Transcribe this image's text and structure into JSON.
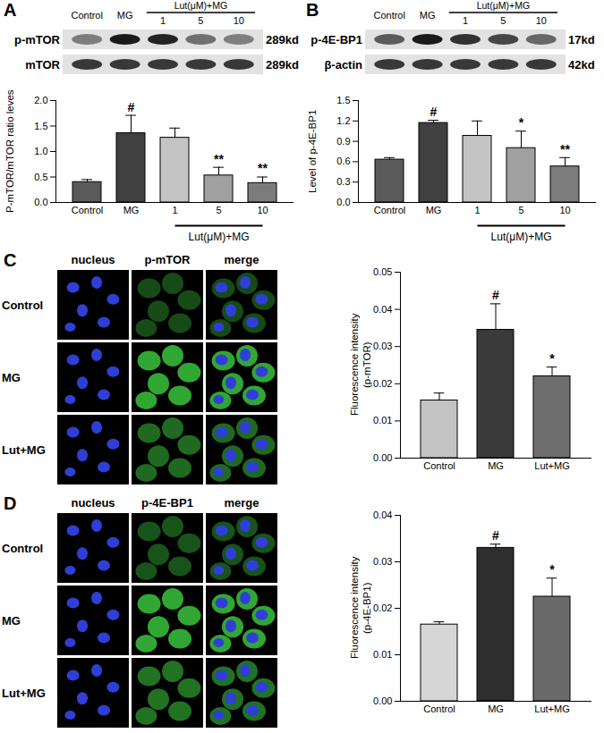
{
  "chart_data": [
    {
      "type": "bar",
      "categories": [
        "Control",
        "MG",
        "1",
        "5",
        "10"
      ],
      "values": [
        0.4,
        1.36,
        1.27,
        0.53,
        0.38
      ],
      "errors": [
        0.05,
        0.35,
        0.19,
        0.16,
        0.12
      ],
      "colors": [
        "#5a5a5a",
        "#404040",
        "#c4c4c4",
        "#a0a0a0",
        "#7c7c7c"
      ],
      "ylim": [
        0,
        2
      ],
      "yticks": [
        {
          "value": 0,
          "label": "0.0"
        },
        {
          "value": 0.5,
          "label": "0.5"
        },
        {
          "value": 1,
          "label": "1.0"
        },
        {
          "value": 1.5,
          "label": "1.5"
        },
        {
          "value": 2,
          "label": "2.0"
        }
      ],
      "y_label": [
        "P-mTOR/mTOR ratio leves"
      ],
      "annotations": {
        "panel": "A",
        "significance": [
          null,
          "#",
          null,
          "**",
          "**"
        ],
        "group": {
          "label": "Lut(μM)+MG",
          "categories": [
            "1",
            "5",
            "10"
          ]
        },
        "blot_rows": [
          {
            "label": "p-mTOR",
            "size": "289kd"
          },
          {
            "label": "mTOR",
            "size": "289kd"
          }
        ]
      }
    },
    {
      "type": "bar",
      "categories": [
        "Control",
        "MG",
        "1",
        "5",
        "10"
      ],
      "values": [
        0.63,
        1.17,
        0.98,
        0.8,
        0.53
      ],
      "errors": [
        0.03,
        0.04,
        0.22,
        0.25,
        0.13
      ],
      "colors": [
        "#5a5a5a",
        "#404040",
        "#c4c4c4",
        "#a0a0a0",
        "#7c7c7c"
      ],
      "ylim": [
        0,
        1.5
      ],
      "yticks": [
        {
          "value": 0,
          "label": "0.0"
        },
        {
          "value": 0.3,
          "label": "0.3"
        },
        {
          "value": 0.6,
          "label": "0.6"
        },
        {
          "value": 0.9,
          "label": "0.9"
        },
        {
          "value": 1.2,
          "label": "1.2"
        },
        {
          "value": 1.5,
          "label": "1.5"
        }
      ],
      "y_label": [
        "Level of p-4E-BP1"
      ],
      "annotations": {
        "panel": "B",
        "significance": [
          null,
          "#",
          null,
          "*",
          "**"
        ],
        "group": {
          "label": "Lut(μM)+MG",
          "categories": [
            "1",
            "5",
            "10"
          ]
        },
        "blot_rows": [
          {
            "label": "p-4E-BP1",
            "size": "17kd"
          },
          {
            "label": "β-actin",
            "size": "42kd"
          }
        ]
      }
    },
    {
      "type": "bar",
      "categories": [
        "Control",
        "MG",
        "Lut+MG"
      ],
      "values": [
        0.0155,
        0.0345,
        0.022
      ],
      "errors": [
        0.002,
        0.007,
        0.0025
      ],
      "colors": [
        "#c4c4c4",
        "#3a3a3a",
        "#6e6e6e"
      ],
      "ylim": [
        0,
        0.05
      ],
      "yticks": [
        {
          "value": 0,
          "label": "0.00"
        },
        {
          "value": 0.01,
          "label": "0.01"
        },
        {
          "value": 0.02,
          "label": "0.02"
        },
        {
          "value": 0.03,
          "label": "0.03"
        },
        {
          "value": 0.04,
          "label": "0.04"
        },
        {
          "value": 0.05,
          "label": "0.05"
        }
      ],
      "y_label": [
        "Fluorescence intensity",
        "(p-mTOR)"
      ],
      "annotations": {
        "panel": "C",
        "significance": [
          null,
          "#",
          "*"
        ],
        "image_columns": [
          "nucleus",
          "p-mTOR",
          "merge"
        ]
      }
    },
    {
      "type": "bar",
      "categories": [
        "Control",
        "MG",
        "Lut+MG"
      ],
      "values": [
        0.0165,
        0.033,
        0.0225
      ],
      "errors": [
        0.0006,
        0.0008,
        0.004
      ],
      "colors": [
        "#d6d6d6",
        "#2e2e2e",
        "#6a6a6a"
      ],
      "ylim": [
        0,
        0.04
      ],
      "yticks": [
        {
          "value": 0,
          "label": "0.00"
        },
        {
          "value": 0.01,
          "label": "0.01"
        },
        {
          "value": 0.02,
          "label": "0.02"
        },
        {
          "value": 0.03,
          "label": "0.03"
        },
        {
          "value": 0.04,
          "label": "0.04"
        }
      ],
      "y_label": [
        "Fluorescence intensity",
        "(p-4E-BP1)"
      ],
      "annotations": {
        "panel": "D",
        "significance": [
          null,
          "#",
          "*"
        ],
        "image_columns": [
          "nucleus",
          "p-4E-BP1",
          "merge"
        ]
      }
    }
  ]
}
